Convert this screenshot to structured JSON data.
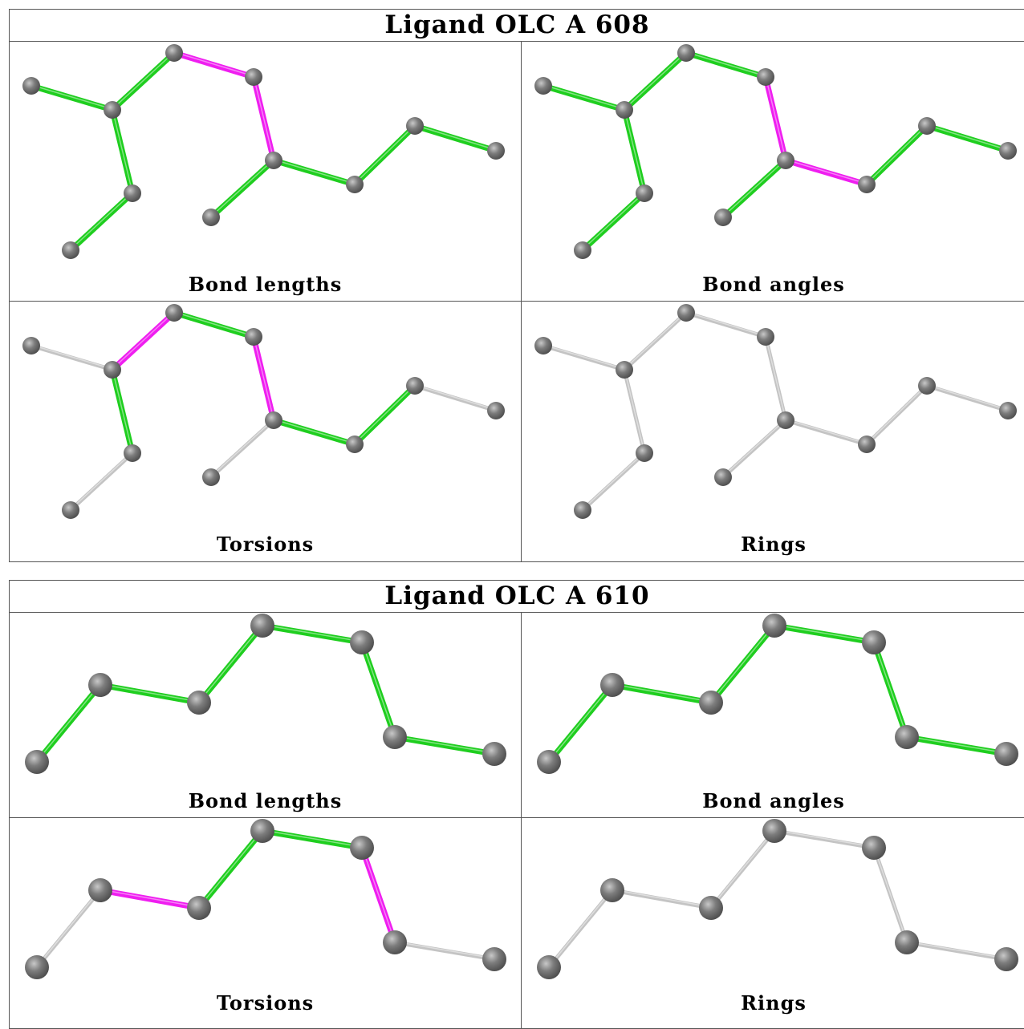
{
  "colors": {
    "ok_bond": "#1fce1f",
    "outlier_bond": "#ef1ef0",
    "neutral_bond": "#c4c4c4",
    "atom": "#7a7a7a"
  },
  "ligands": [
    {
      "title": "Ligand OLC A 608",
      "panels": [
        {
          "label": "Bond lengths"
        },
        {
          "label": "Bond angles"
        },
        {
          "label": "Torsions"
        },
        {
          "label": "Rings"
        }
      ]
    },
    {
      "title": "Ligand OLC A 610",
      "panels": [
        {
          "label": "Bond lengths"
        },
        {
          "label": "Bond angles"
        },
        {
          "label": "Torsions"
        },
        {
          "label": "Rings"
        }
      ]
    }
  ]
}
